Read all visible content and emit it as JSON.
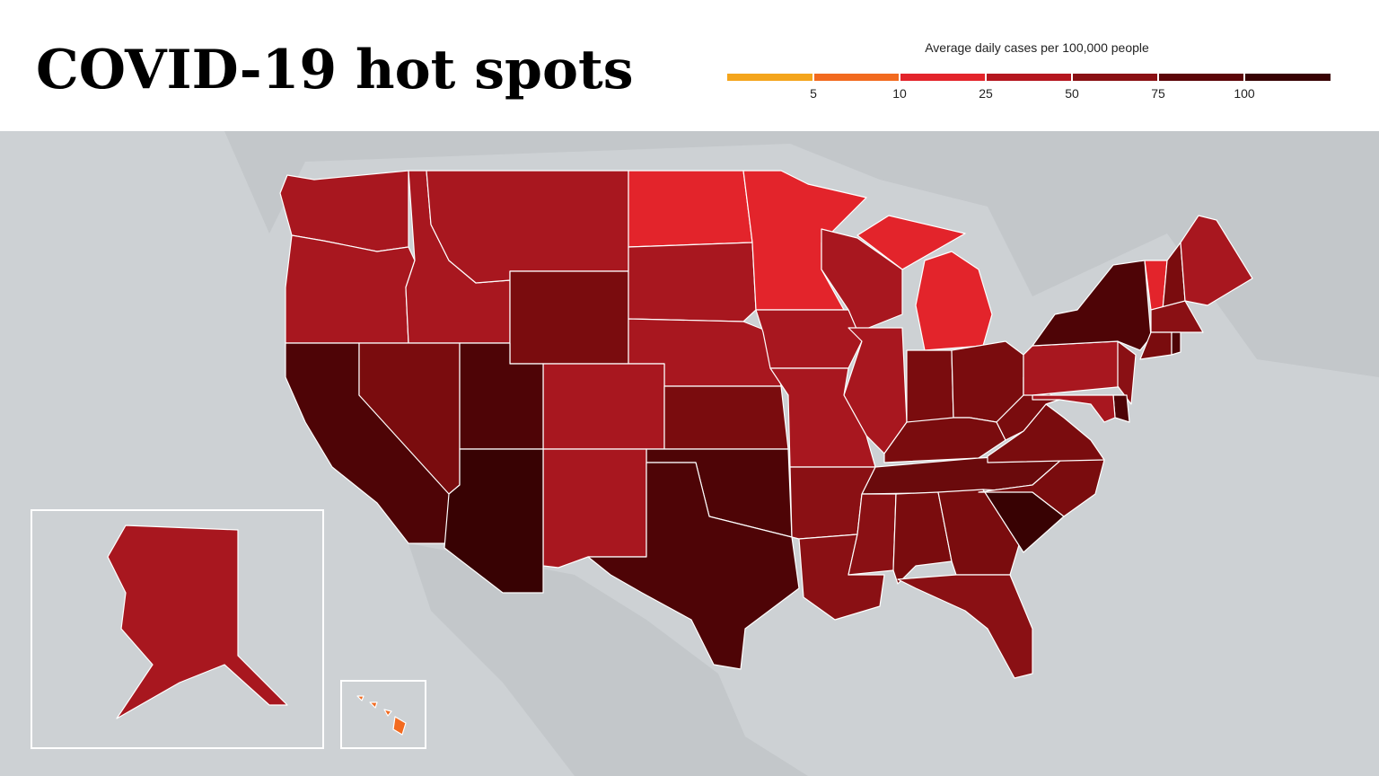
{
  "header": {
    "title": "COVID-19 hot spots"
  },
  "legend": {
    "title": "Average daily cases per 100,000 people",
    "colors": [
      "#f4a51c",
      "#f26a1f",
      "#e3242b",
      "#b5161f",
      "#8a1014",
      "#5c0508",
      "#380203"
    ],
    "ticks": [
      5,
      10,
      25,
      50,
      75,
      100
    ]
  },
  "map": {
    "state_colors": [
      "#a8171f",
      "#a8171f",
      "#a8171f",
      "#a8171f",
      "#7a0c0e",
      "#e3242b",
      "#a8171f",
      "#a8171f",
      "#a8171f",
      "#7a0c0e",
      "#4e0406",
      "#a8171f",
      "#4e0406",
      "#4e0406",
      "#7a0c0e",
      "#4e0406",
      "#380203",
      "#e3242b",
      "#a8171f",
      "#e3242b",
      "#e3242b",
      "#a8171f",
      "#a8171f",
      "#a8171f",
      "#7a0c0e",
      "#7a0c0e",
      "#7a0c0e",
      "#6a0a0c",
      "#8a1014",
      "#8a1014",
      "#8a1014",
      "#7a0c0e",
      "#7a0c0e",
      "#8a1014",
      "#380203",
      "#7a0c0e",
      "#7a0c0e",
      "#7a0c0e",
      "#a8171f",
      "#4e0406",
      "#8a1014",
      "#4e0406",
      "#a8171f",
      "#e3242b",
      "#7a0c0e",
      "#a8171f",
      "#8a1014",
      "#7a0c0e",
      "#4e0406",
      "#a8171f",
      "#f26a1f"
    ]
  }
}
